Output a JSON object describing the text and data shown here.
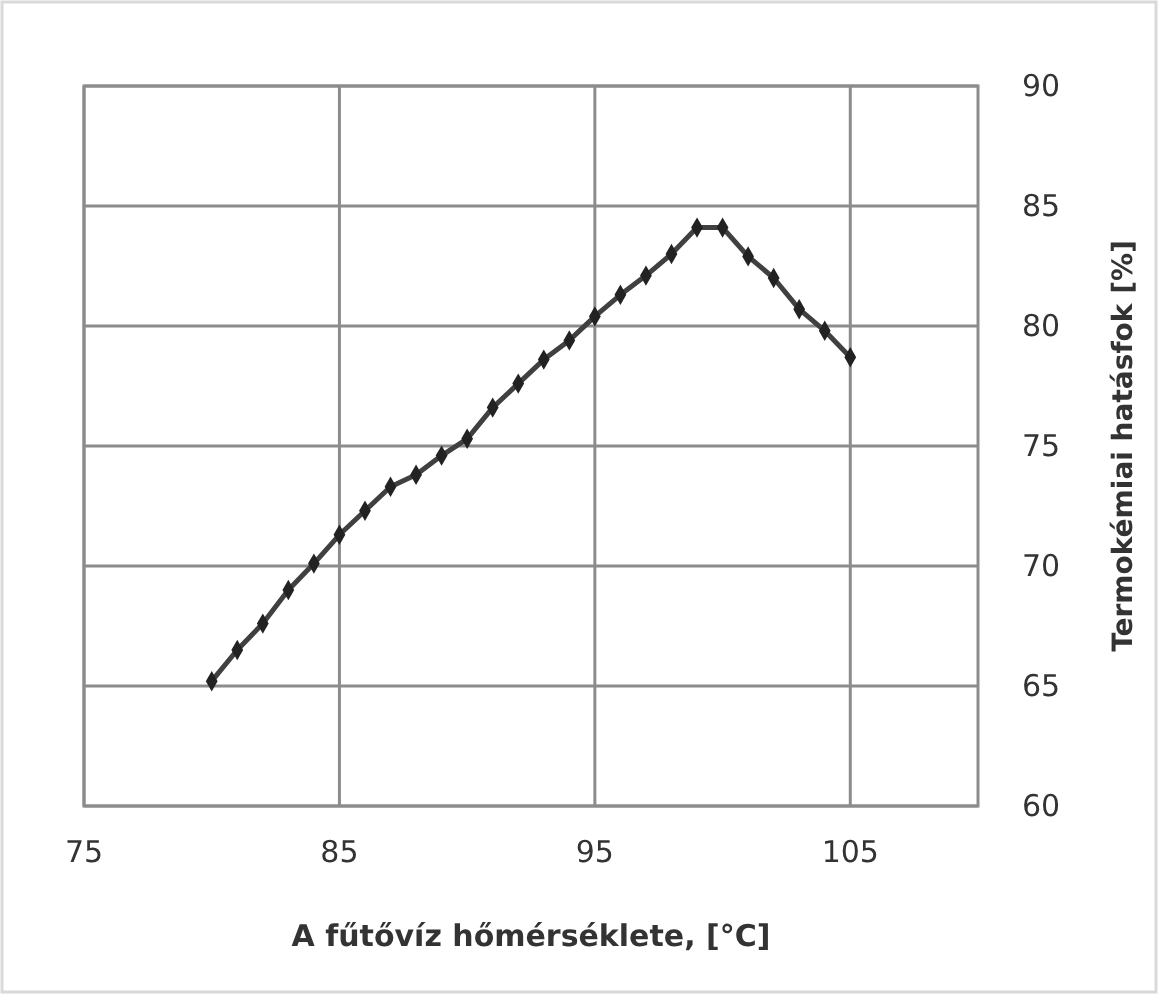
{
  "chart_data": {
    "type": "line",
    "xlabel": "A fűtővíz hőmérséklete, [°C]",
    "y2label": "Termokémiai hatásfok [%]",
    "x": [
      80,
      81,
      82,
      83,
      84,
      85,
      86,
      87,
      88,
      89,
      90,
      91,
      92,
      93,
      94,
      95,
      96,
      97,
      98,
      99,
      100,
      101,
      102,
      103,
      104,
      105
    ],
    "series": [
      {
        "color": "#404040",
        "axis": "y2",
        "values": [
          65.2,
          66.5,
          67.6,
          69.0,
          70.1,
          71.3,
          72.3,
          73.3,
          73.8,
          74.6,
          75.3,
          76.6,
          77.6,
          78.6,
          79.4,
          80.4,
          81.3,
          82.1,
          83.0,
          84.1,
          84.1,
          82.9,
          82.0,
          80.7,
          79.8,
          78.7
        ]
      }
    ],
    "xlim": [
      75,
      110
    ],
    "xticks": [
      75,
      85,
      95,
      105
    ],
    "y2lim": [
      60,
      90
    ],
    "y2ticks": [
      60,
      65,
      70,
      75,
      80,
      85,
      90
    ],
    "grid": true,
    "marker": "diamond",
    "line_style": "solid"
  }
}
